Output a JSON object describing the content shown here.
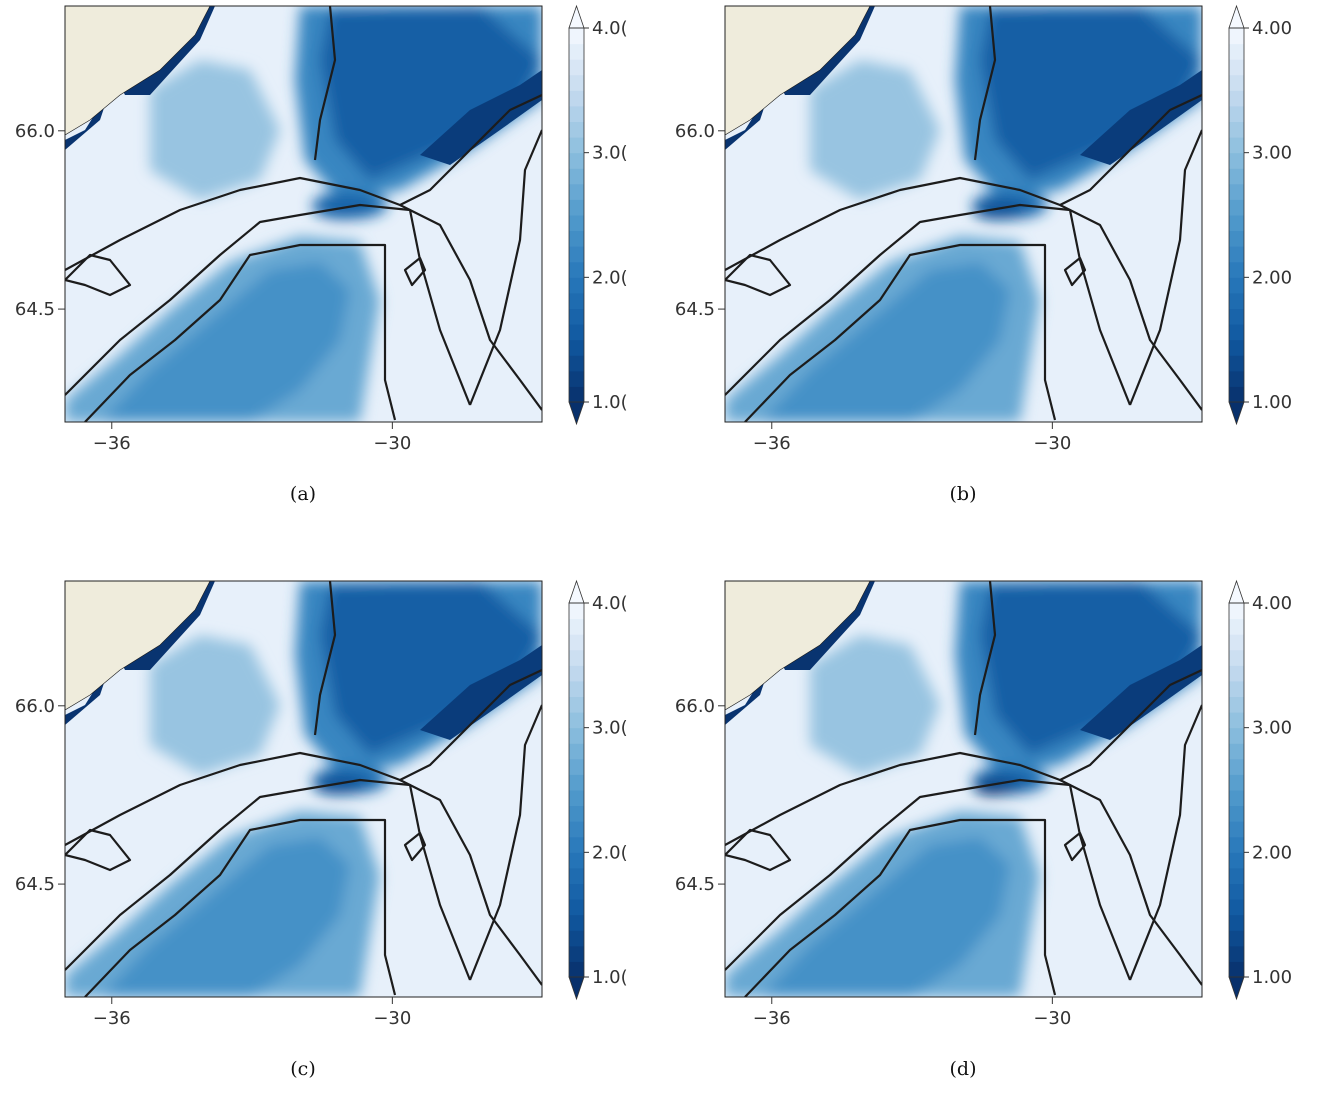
{
  "chart_data": [
    {
      "type": "heatmap",
      "panel_label": "(a)",
      "x_ticks": [
        -36,
        -30
      ],
      "x_tick_labels": [
        "−36",
        "−30"
      ],
      "y_ticks": [
        66.0,
        64.5
      ],
      "y_tick_labels": [
        "66.0",
        "64.5"
      ],
      "colorbar": {
        "ticks": [
          1.0,
          2.0,
          3.0,
          4.0
        ],
        "tick_labels": [
          "1.0(",
          "2.0(",
          "3.0(",
          "4.0("
        ],
        "range": [
          1.0,
          4.0
        ],
        "colormap": "Blues_r",
        "extend": "both"
      },
      "land_color": "#efecdc",
      "strait_bands": 2
    },
    {
      "type": "heatmap",
      "panel_label": "(b)",
      "x_ticks": [
        -36,
        -30
      ],
      "x_tick_labels": [
        "−36",
        "−30"
      ],
      "y_ticks": [
        66.0,
        64.5
      ],
      "y_tick_labels": [
        "66.0",
        "64.5"
      ],
      "colorbar": {
        "ticks": [
          1.0,
          2.0,
          3.0,
          4.0
        ],
        "tick_labels": [
          "1.00",
          "2.00",
          "3.00",
          "4.00"
        ],
        "range": [
          1.0,
          4.0
        ],
        "colormap": "Blues_r",
        "extend": "both"
      },
      "land_color": "#efecdc",
      "strait_bands": 3
    },
    {
      "type": "heatmap",
      "panel_label": "(c)",
      "x_ticks": [
        -36,
        -30
      ],
      "x_tick_labels": [
        "−36",
        "−30"
      ],
      "y_ticks": [
        66.0,
        64.5
      ],
      "y_tick_labels": [
        "66.0",
        "64.5"
      ],
      "colorbar": {
        "ticks": [
          1.0,
          2.0,
          3.0,
          4.0
        ],
        "tick_labels": [
          "1.0(",
          "2.0(",
          "3.0(",
          "4.0("
        ],
        "range": [
          1.0,
          4.0
        ],
        "colormap": "Blues_r",
        "extend": "both"
      },
      "land_color": "#efecdc",
      "strait_bands": 3
    },
    {
      "type": "heatmap",
      "panel_label": "(d)",
      "x_ticks": [
        -36,
        -30
      ],
      "x_tick_labels": [
        "−36",
        "−30"
      ],
      "y_ticks": [
        66.0,
        64.5
      ],
      "y_tick_labels": [
        "66.0",
        "64.5"
      ],
      "colorbar": {
        "ticks": [
          1.0,
          2.0,
          3.0,
          4.0
        ],
        "tick_labels": [
          "1.00",
          "2.00",
          "3.00",
          "4.00"
        ],
        "range": [
          1.0,
          4.0
        ],
        "colormap": "Blues_r",
        "extend": "both"
      },
      "land_color": "#efecdc",
      "strait_bands": 4
    }
  ]
}
